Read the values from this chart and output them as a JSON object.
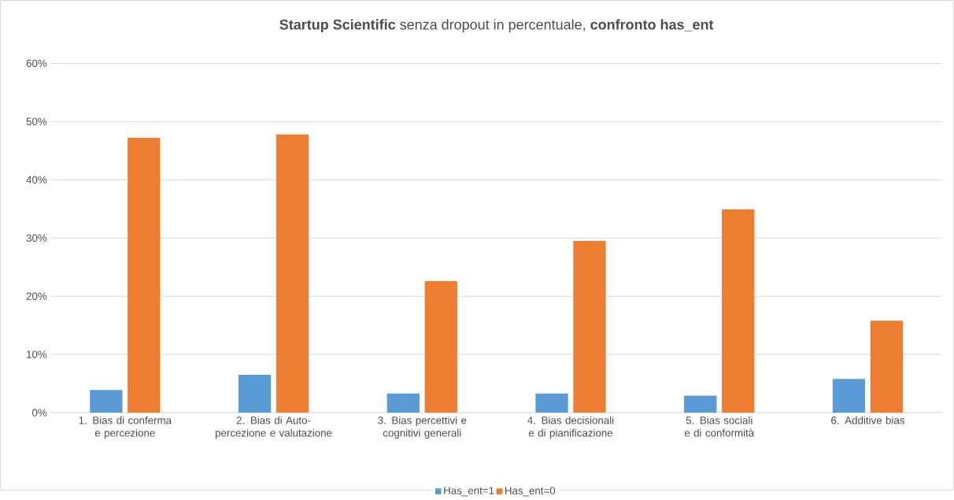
{
  "chart_data": {
    "type": "bar",
    "title": "**Startup Scientific** senza  dropout in percentuale, **confronto has_ent**",
    "categories": [
      "1. Bias di conferma e percezione",
      "2. Bias di Auto-percezione e valutazione",
      "3. Bias percettivi e cognitivi generali",
      "4. Bias decisionali e di pianificazione",
      "5. Bias sociali e di conformità",
      "6. Additive bias"
    ],
    "series": [
      {
        "name": "Has_ent=1",
        "color": "#5b9bd5",
        "values": [
          3.9,
          6.5,
          3.3,
          3.3,
          2.9,
          5.8
        ]
      },
      {
        "name": "Has_ent=0",
        "color": "#ed7d31",
        "values": [
          47.2,
          47.8,
          22.6,
          29.5,
          34.9,
          15.8
        ]
      }
    ],
    "ylim": [
      0,
      60
    ],
    "yticks": [
      {
        "value": 0,
        "label": "0%"
      },
      {
        "value": 10,
        "label": "10%"
      },
      {
        "value": 20,
        "label": "20%"
      },
      {
        "value": 30,
        "label": "30%"
      },
      {
        "value": 40,
        "label": "40%"
      },
      {
        "value": 50,
        "label": "50%"
      },
      {
        "value": 60,
        "label": "60%"
      }
    ],
    "grid": "y",
    "legend": "bottom"
  }
}
